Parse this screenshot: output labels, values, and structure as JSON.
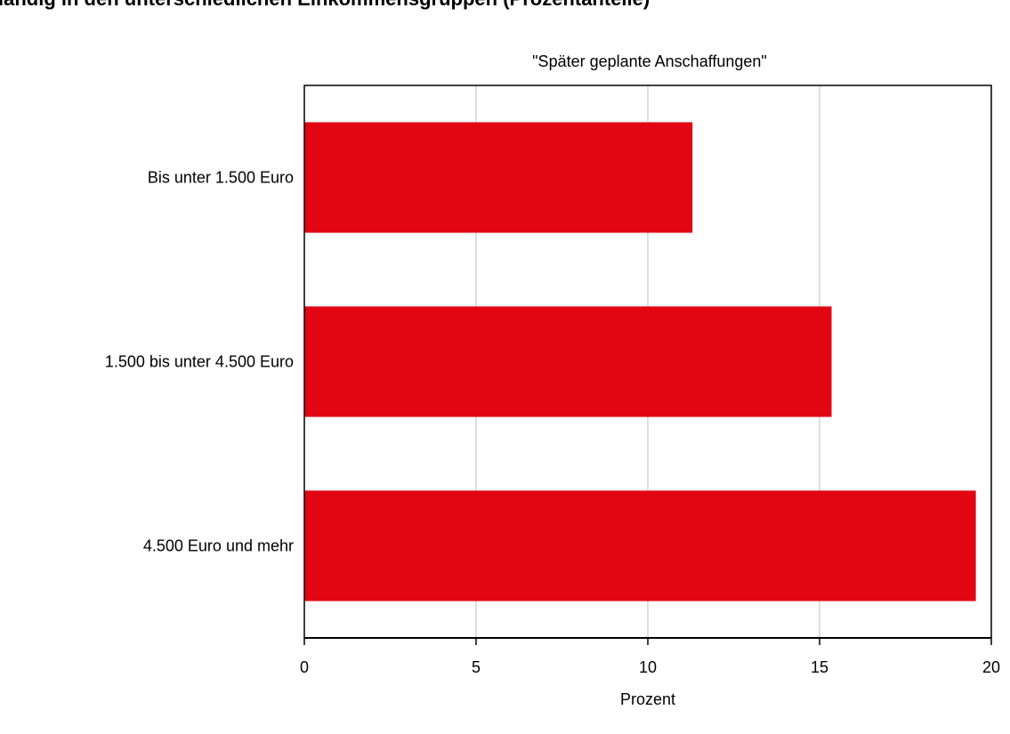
{
  "header": {
    "clipped_title": "ländig in den unterschiedlichen Einkommensgruppen (Prozentanteile)"
  },
  "chart_data": {
    "type": "bar",
    "orientation": "horizontal",
    "title": "\"Später geplante Anschaffungen\"",
    "xlabel": "Prozent",
    "ylabel": "",
    "categories": [
      "Bis unter 1.500 Euro",
      "1.500 bis unter 4.500 Euro",
      "4.500 Euro und mehr"
    ],
    "values": [
      11.3,
      15.35,
      19.55
    ],
    "xlim": [
      0,
      20
    ],
    "xticks": [
      0,
      5,
      10,
      15,
      20
    ],
    "grid": "vertical",
    "legend": "none",
    "bar_color": "#e20613",
    "grid_color": "#c8c8c8"
  }
}
